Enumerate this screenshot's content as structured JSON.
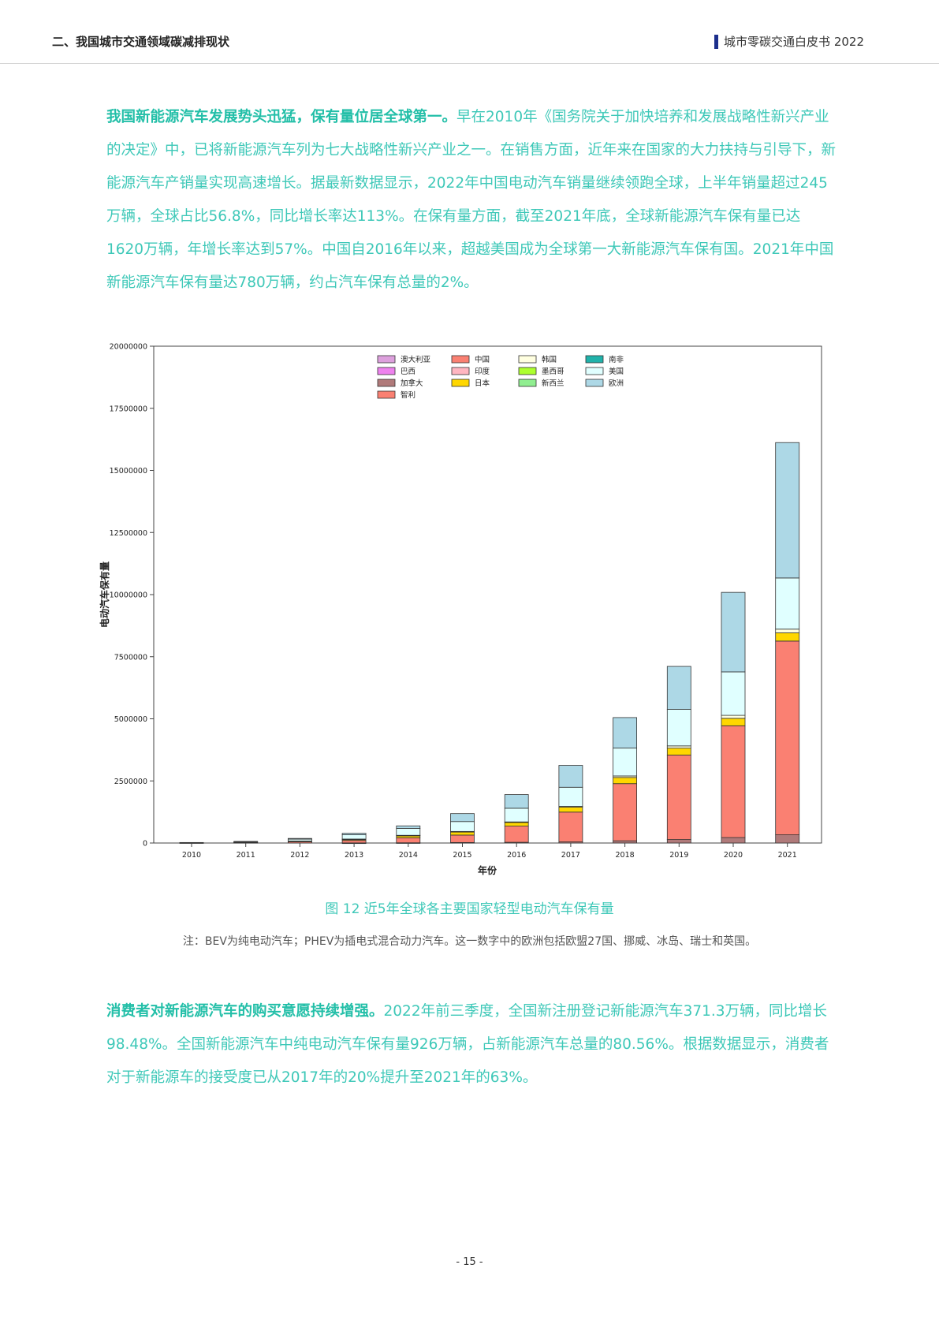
{
  "header": {
    "section": "二、我国城市交通领域碳减排现状",
    "doc_title": "城市零碳交通白皮书 2022"
  },
  "para1": {
    "lead": "我国新能源汽车发展势头迅猛，保有量位居全球第一。",
    "body": "早在2010年《国务院关于加快培养和发展战略性新兴产业的决定》中，已将新能源汽车列为七大战略性新兴产业之一。在销售方面，近年来在国家的大力扶持与引导下，新能源汽车产销量实现高速增长。据最新数据显示，2022年中国电动汽车销量继续领跑全球，上半年销量超过245万辆，全球占比56.8%，同比增长率达113%。在保有量方面，截至2021年底，全球新能源汽车保有量已达1620万辆，年增长率达到57%。中国自2016年以来，超越美国成为全球第一大新能源汽车保有国。2021年中国新能源汽车保有量达780万辆，约占汽车保有总量的2%。"
  },
  "chart_data": {
    "type": "bar",
    "stacked": true,
    "xlabel": "年份",
    "ylabel": "电动汽车保有量",
    "ylim": [
      0,
      20000000
    ],
    "yticks": [
      0,
      2500000,
      5000000,
      7500000,
      10000000,
      12500000,
      15000000,
      17500000,
      20000000
    ],
    "ytick_labels": [
      "0",
      "2500000",
      "5000000",
      "7500000",
      "10000000",
      "12500000",
      "15000000",
      "17500000",
      "20000000"
    ],
    "categories": [
      "2010",
      "2011",
      "2012",
      "2013",
      "2014",
      "2015",
      "2016",
      "2017",
      "2018",
      "2019",
      "2020",
      "2021"
    ],
    "legend_position": "top",
    "series": [
      {
        "name": "加拿大",
        "color": "#b07a7a",
        "values": [
          0,
          0,
          0,
          5000,
          10000,
          20000,
          30000,
          45000,
          90000,
          140000,
          220000,
          330000
        ]
      },
      {
        "name": "中国",
        "color": "#fa8072",
        "values": [
          10000,
          20000,
          50000,
          100000,
          200000,
          300000,
          650000,
          1200000,
          2300000,
          3400000,
          4500000,
          7800000
        ]
      },
      {
        "name": "日本",
        "color": "#ffd700",
        "values": [
          0,
          10000,
          30000,
          50000,
          90000,
          130000,
          150000,
          200000,
          250000,
          280000,
          300000,
          330000
        ]
      },
      {
        "name": "韩国",
        "color": "#ffffe0",
        "values": [
          0,
          0,
          0,
          5000,
          10000,
          15000,
          20000,
          30000,
          60000,
          90000,
          120000,
          150000
        ]
      },
      {
        "name": "美国",
        "color": "#e0ffff",
        "values": [
          10000,
          20000,
          75000,
          170000,
          280000,
          400000,
          550000,
          770000,
          1120000,
          1470000,
          1750000,
          2060000
        ]
      },
      {
        "name": "欧洲",
        "color": "#add8e6",
        "values": [
          0,
          15000,
          30000,
          60000,
          100000,
          320000,
          550000,
          880000,
          1230000,
          1730000,
          3200000,
          5450000
        ]
      }
    ],
    "legend": [
      {
        "name": "澳大利亚",
        "color": "#dda0dd"
      },
      {
        "name": "中国",
        "color": "#fa8072"
      },
      {
        "name": "韩国",
        "color": "#ffffe0"
      },
      {
        "name": "南非",
        "color": "#20b2aa"
      },
      {
        "name": "巴西",
        "color": "#ee82ee"
      },
      {
        "name": "印度",
        "color": "#ffb6c1"
      },
      {
        "name": "墨西哥",
        "color": "#adff2f"
      },
      {
        "name": "美国",
        "color": "#e0ffff"
      },
      {
        "name": "加拿大",
        "color": "#b07a7a"
      },
      {
        "name": "日本",
        "color": "#ffd700"
      },
      {
        "name": "新西兰",
        "color": "#90ee90"
      },
      {
        "name": "欧洲",
        "color": "#add8e6"
      },
      {
        "name": "智利",
        "color": "#fa8072"
      }
    ]
  },
  "figure": {
    "caption": "图 12  近5年全球各主要国家轻型电动汽车保有量",
    "note": "注：BEV为纯电动汽车；PHEV为插电式混合动力汽车。这一数字中的欧洲包括欧盟27国、挪威、冰岛、瑞士和英国。"
  },
  "para2": {
    "lead": "消费者对新能源汽车的购买意愿持续增强。",
    "body": "2022年前三季度，全国新注册登记新能源汽车371.3万辆，同比增长98.48%。全国新能源汽车中纯电动汽车保有量926万辆，占新能源汽车总量的80.56%。根据数据显示，消费者对于新能源车的接受度已从2017年的20%提升至2021年的63%。"
  },
  "footer": {
    "page_number": "- 15 -"
  }
}
